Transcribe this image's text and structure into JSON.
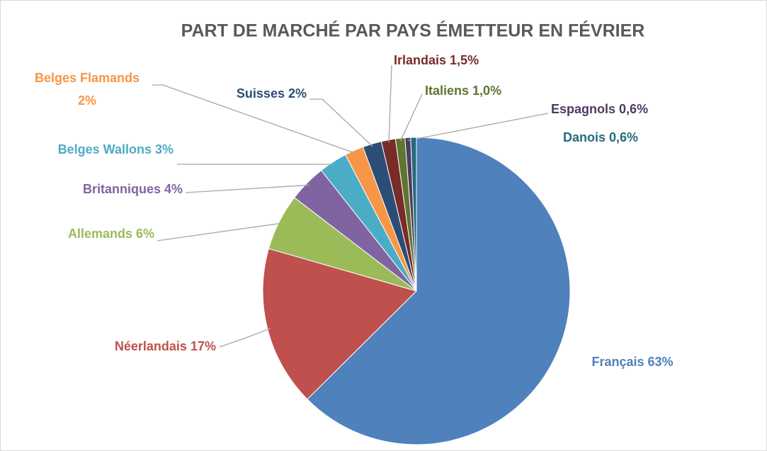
{
  "chart_data": {
    "type": "pie",
    "title": "PART DE MARCHÉ PAR PAYS ÉMETTEUR EN FÉVRIER",
    "categories": [
      "Français",
      "Néerlandais",
      "Allemands",
      "Britanniques",
      "Belges Wallons",
      "Belges Flamands",
      "Suisses",
      "Irlandais",
      "Italiens",
      "Espagnols",
      "Danois"
    ],
    "values": [
      63,
      17,
      6,
      4,
      3,
      2,
      2,
      1.5,
      1.0,
      0.6,
      0.6
    ],
    "value_labels": [
      "63%",
      "17%",
      "6%",
      "4%",
      "3%",
      "2%",
      "2%",
      "1,5%",
      "1,0%",
      "0,6%",
      "0,6%"
    ],
    "colors": [
      "#4f81bd",
      "#c0504d",
      "#9bbb59",
      "#8064a2",
      "#4bacc6",
      "#f79646",
      "#2c4d75",
      "#772c2a",
      "#5f7530",
      "#4d3b62",
      "#276a7c"
    ]
  }
}
